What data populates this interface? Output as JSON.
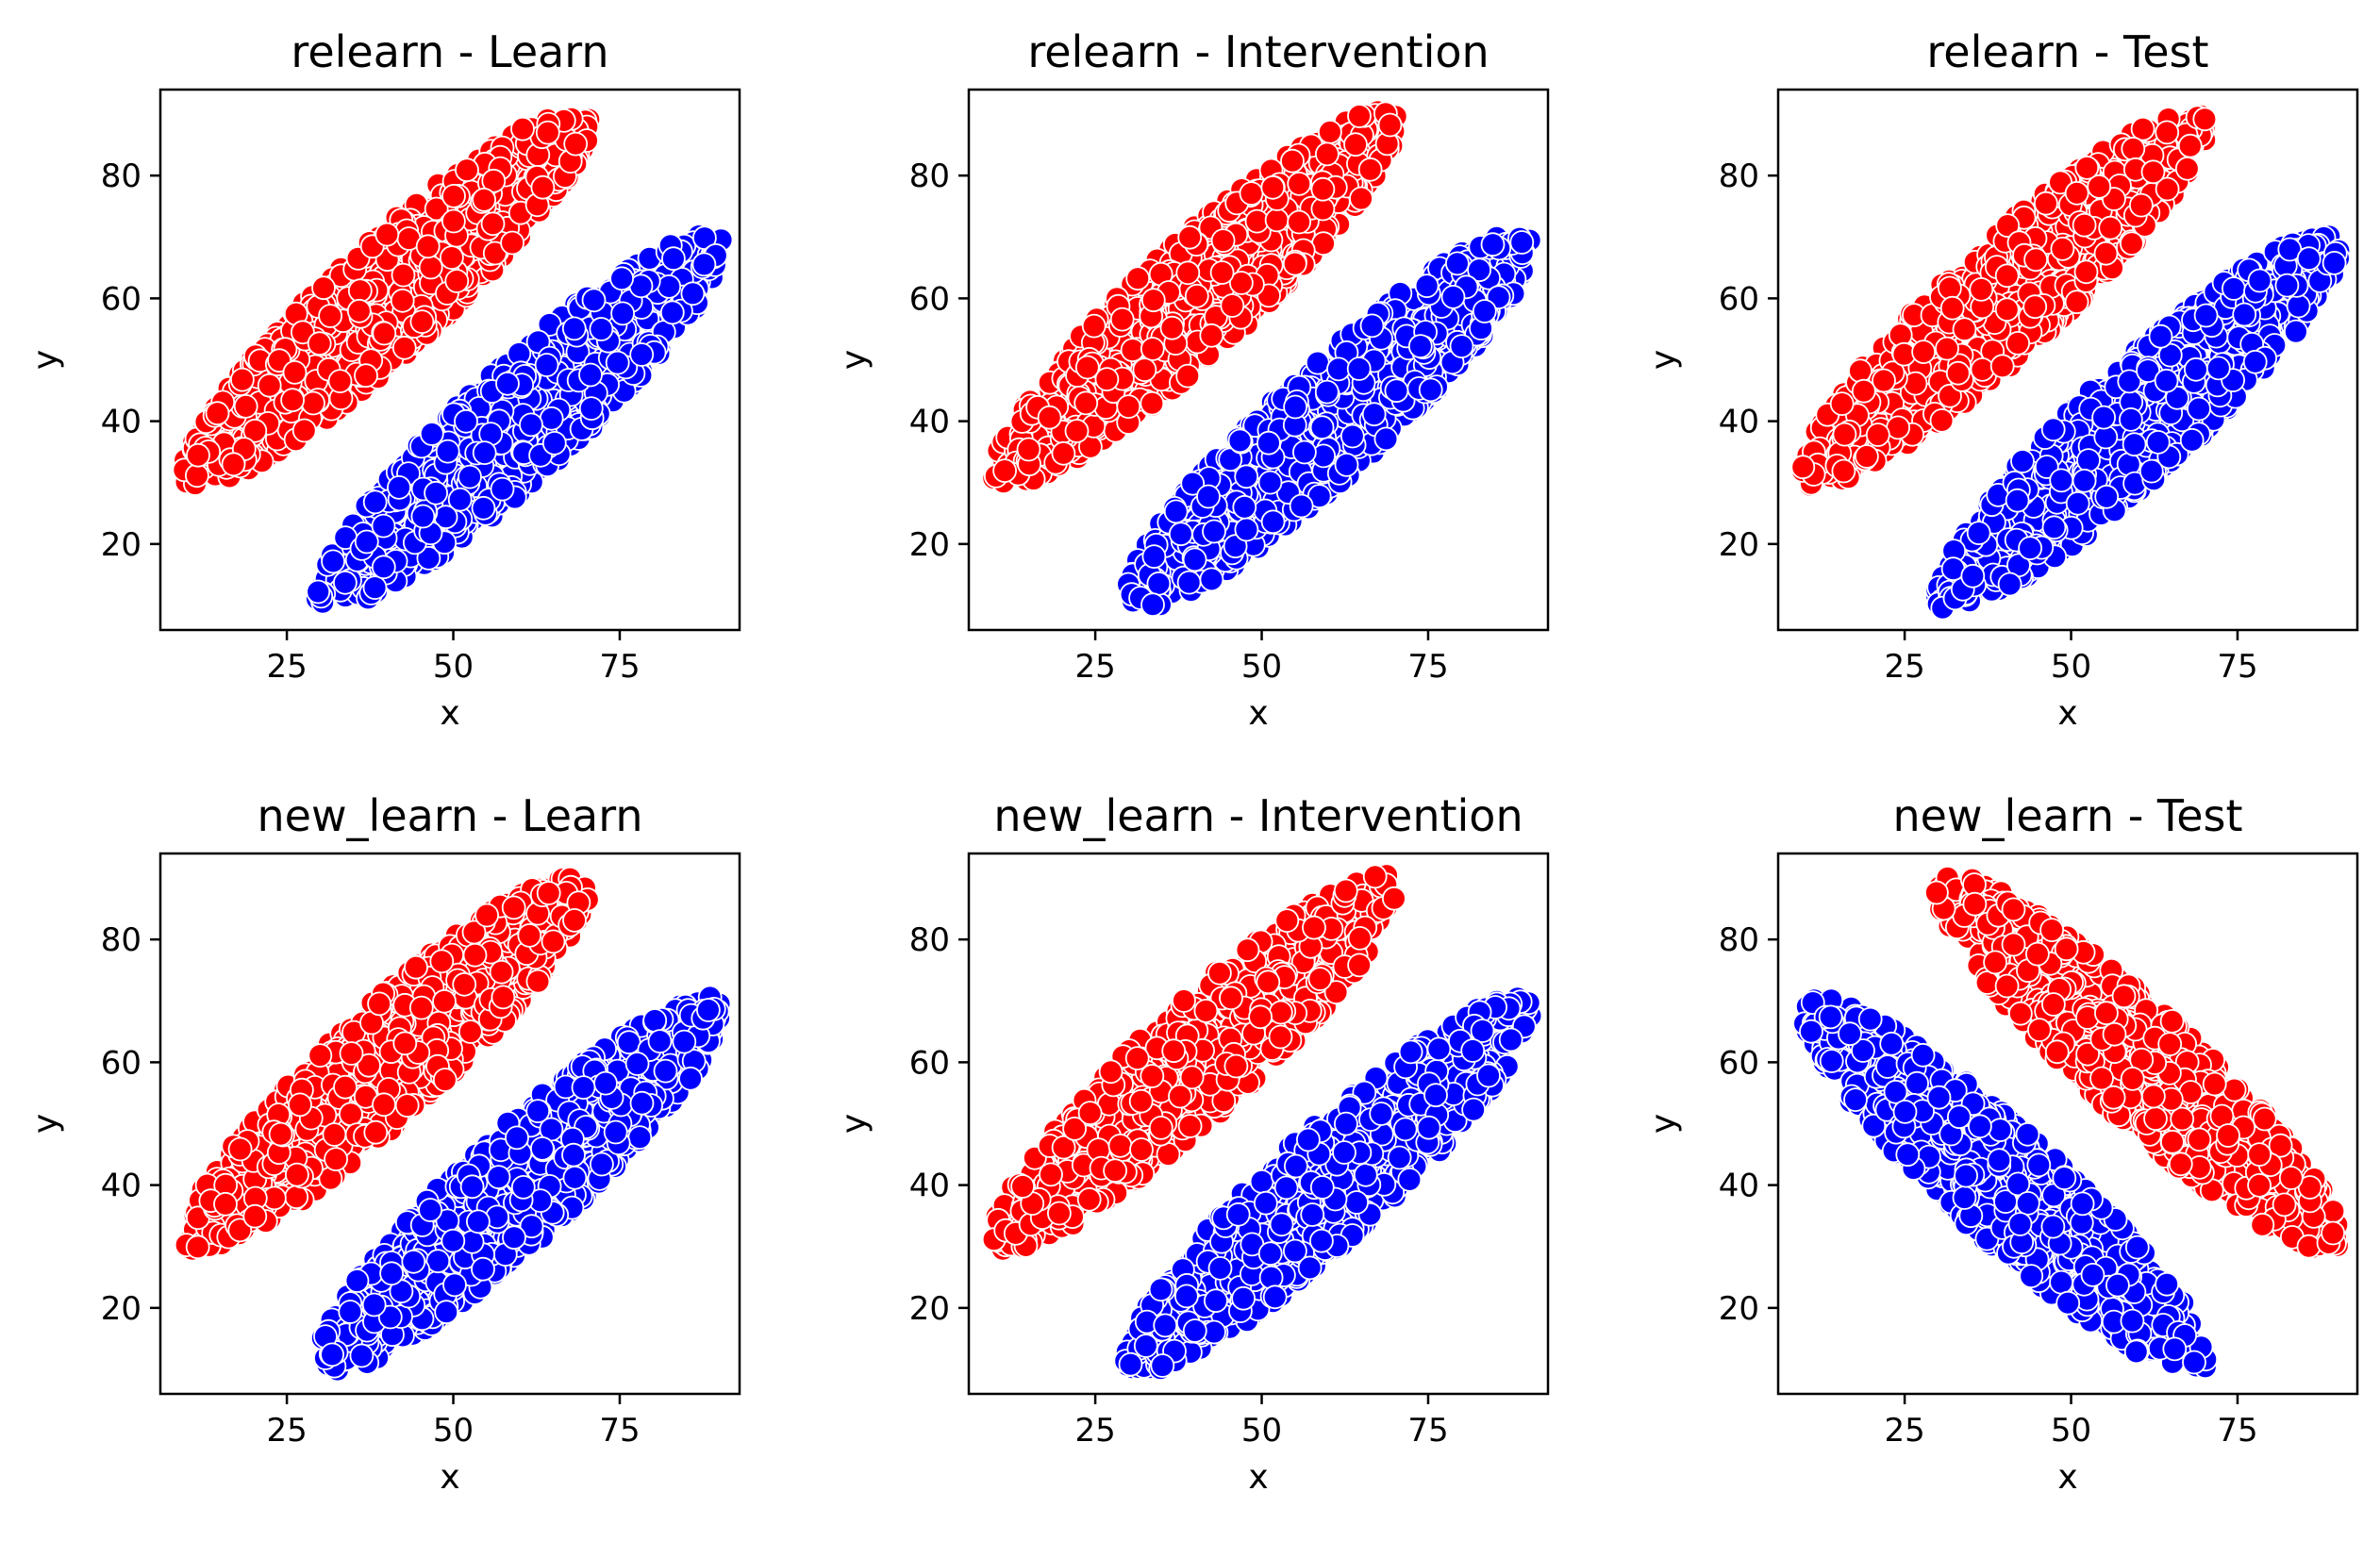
{
  "chart_data": [
    {
      "type": "scatter",
      "title": "relearn - Learn",
      "xlabel": "x",
      "ylabel": "y",
      "xlim": [
        6,
        93
      ],
      "ylim": [
        6,
        94
      ],
      "xticks": [
        25,
        50,
        75
      ],
      "yticks": [
        20,
        40,
        60,
        80
      ],
      "series": [
        {
          "color": "#ff0000",
          "direction": "positive",
          "x_range": [
            10,
            70
          ],
          "y_range": [
            30,
            90
          ]
        },
        {
          "color": "#0000ff",
          "direction": "positive",
          "x_range": [
            30,
            90
          ],
          "y_range": [
            10,
            70
          ]
        }
      ]
    },
    {
      "type": "scatter",
      "title": "relearn - Intervention",
      "xlabel": "x",
      "ylabel": "y",
      "xlim": [
        6,
        93
      ],
      "ylim": [
        6,
        94
      ],
      "xticks": [
        25,
        50,
        75
      ],
      "yticks": [
        20,
        40,
        60,
        80
      ],
      "series": [
        {
          "color": "#ff0000",
          "direction": "positive",
          "x_range": [
            10,
            70
          ],
          "y_range": [
            30,
            90
          ]
        },
        {
          "color": "#0000ff",
          "direction": "positive",
          "x_range": [
            30,
            90
          ],
          "y_range": [
            10,
            70
          ]
        }
      ]
    },
    {
      "type": "scatter",
      "title": "relearn - Test",
      "xlabel": "x",
      "ylabel": "y",
      "xlim": [
        6,
        93
      ],
      "ylim": [
        6,
        94
      ],
      "xticks": [
        25,
        50,
        75
      ],
      "yticks": [
        20,
        40,
        60,
        80
      ],
      "series": [
        {
          "color": "#ff0000",
          "direction": "positive",
          "x_range": [
            10,
            70
          ],
          "y_range": [
            30,
            90
          ]
        },
        {
          "color": "#0000ff",
          "direction": "positive",
          "x_range": [
            30,
            90
          ],
          "y_range": [
            10,
            70
          ]
        }
      ]
    },
    {
      "type": "scatter",
      "title": "new_learn - Learn",
      "xlabel": "x",
      "ylabel": "y",
      "xlim": [
        6,
        93
      ],
      "ylim": [
        6,
        94
      ],
      "xticks": [
        25,
        50,
        75
      ],
      "yticks": [
        20,
        40,
        60,
        80
      ],
      "series": [
        {
          "color": "#ff0000",
          "direction": "positive",
          "x_range": [
            10,
            70
          ],
          "y_range": [
            30,
            90
          ]
        },
        {
          "color": "#0000ff",
          "direction": "positive",
          "x_range": [
            30,
            90
          ],
          "y_range": [
            10,
            70
          ]
        }
      ]
    },
    {
      "type": "scatter",
      "title": "new_learn - Intervention",
      "xlabel": "x",
      "ylabel": "y",
      "xlim": [
        6,
        93
      ],
      "ylim": [
        6,
        94
      ],
      "xticks": [
        25,
        50,
        75
      ],
      "yticks": [
        20,
        40,
        60,
        80
      ],
      "series": [
        {
          "color": "#ff0000",
          "direction": "positive",
          "x_range": [
            10,
            70
          ],
          "y_range": [
            30,
            90
          ]
        },
        {
          "color": "#0000ff",
          "direction": "positive",
          "x_range": [
            30,
            90
          ],
          "y_range": [
            10,
            70
          ]
        }
      ]
    },
    {
      "type": "scatter",
      "title": "new_learn - Test",
      "xlabel": "x",
      "ylabel": "y",
      "xlim": [
        6,
        93
      ],
      "ylim": [
        6,
        94
      ],
      "xticks": [
        25,
        50,
        75
      ],
      "yticks": [
        20,
        40,
        60,
        80
      ],
      "series": [
        {
          "color": "#ff0000",
          "direction": "negative",
          "x_range": [
            30,
            90
          ],
          "y_range": [
            30,
            90
          ]
        },
        {
          "color": "#0000ff",
          "direction": "negative",
          "x_range": [
            10,
            70
          ],
          "y_range": [
            10,
            70
          ]
        }
      ]
    }
  ]
}
